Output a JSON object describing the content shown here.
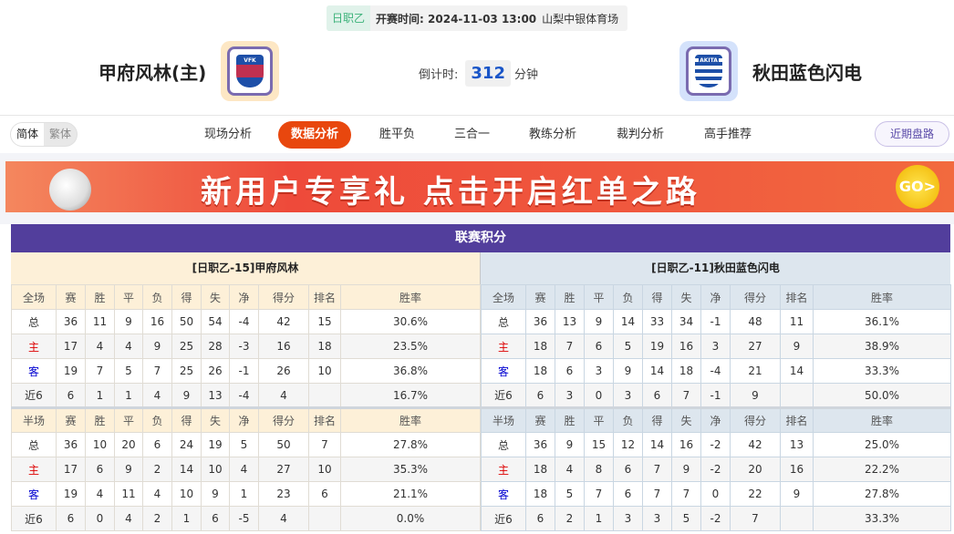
{
  "match": {
    "league": "日职乙",
    "time_label": "开赛时间:",
    "time": "2024-11-03 13:00",
    "venue": "山梨中银体育场",
    "home": "甲府风林(主)",
    "away": "秋田蓝色闪电",
    "countdown_label": "倒计时:",
    "countdown": "312",
    "countdown_unit": "分钟",
    "home_logo_text": "VFK",
    "away_logo_text": "AKITA"
  },
  "lang": {
    "simplified": "简体",
    "traditional": "繁体"
  },
  "nav": [
    {
      "label": "现场分析"
    },
    {
      "label": "数据分析",
      "active": true
    },
    {
      "label": "胜平负"
    },
    {
      "label": "三合一"
    },
    {
      "label": "教练分析"
    },
    {
      "label": "裁判分析"
    },
    {
      "label": "高手推荐"
    }
  ],
  "recent_button": "近期盘路",
  "banner": {
    "text": "新用户专享礼  点击开启红单之路",
    "go": "GO>"
  },
  "standings": {
    "title": "联赛积分",
    "full_header": [
      "全场",
      "赛",
      "胜",
      "平",
      "负",
      "得",
      "失",
      "净",
      "得分",
      "排名",
      "胜率"
    ],
    "half_header": [
      "半场",
      "赛",
      "胜",
      "平",
      "负",
      "得",
      "失",
      "净",
      "得分",
      "排名",
      "胜率"
    ],
    "teams": [
      {
        "name": "[日职乙-15]甲府风林",
        "full": [
          [
            "总",
            "36",
            "11",
            "9",
            "16",
            "50",
            "54",
            "-4",
            "42",
            "15",
            "30.6%"
          ],
          [
            "主",
            "17",
            "4",
            "4",
            "9",
            "25",
            "28",
            "-3",
            "16",
            "18",
            "23.5%"
          ],
          [
            "客",
            "19",
            "7",
            "5",
            "7",
            "25",
            "26",
            "-1",
            "26",
            "10",
            "36.8%"
          ],
          [
            "近6",
            "6",
            "1",
            "1",
            "4",
            "9",
            "13",
            "-4",
            "4",
            "",
            "16.7%"
          ]
        ],
        "half": [
          [
            "总",
            "36",
            "10",
            "20",
            "6",
            "24",
            "19",
            "5",
            "50",
            "7",
            "27.8%"
          ],
          [
            "主",
            "17",
            "6",
            "9",
            "2",
            "14",
            "10",
            "4",
            "27",
            "10",
            "35.3%"
          ],
          [
            "客",
            "19",
            "4",
            "11",
            "4",
            "10",
            "9",
            "1",
            "23",
            "6",
            "21.1%"
          ],
          [
            "近6",
            "6",
            "0",
            "4",
            "2",
            "1",
            "6",
            "-5",
            "4",
            "",
            "0.0%"
          ]
        ]
      },
      {
        "name": "[日职乙-11]秋田蓝色闪电",
        "full": [
          [
            "总",
            "36",
            "13",
            "9",
            "14",
            "33",
            "34",
            "-1",
            "48",
            "11",
            "36.1%"
          ],
          [
            "主",
            "18",
            "7",
            "6",
            "5",
            "19",
            "16",
            "3",
            "27",
            "9",
            "38.9%"
          ],
          [
            "客",
            "18",
            "6",
            "3",
            "9",
            "14",
            "18",
            "-4",
            "21",
            "14",
            "33.3%"
          ],
          [
            "近6",
            "6",
            "3",
            "0",
            "3",
            "6",
            "7",
            "-1",
            "9",
            "",
            "50.0%"
          ]
        ],
        "half": [
          [
            "总",
            "36",
            "9",
            "15",
            "12",
            "14",
            "16",
            "-2",
            "42",
            "13",
            "25.0%"
          ],
          [
            "主",
            "18",
            "4",
            "8",
            "6",
            "7",
            "9",
            "-2",
            "20",
            "16",
            "22.2%"
          ],
          [
            "客",
            "18",
            "5",
            "7",
            "6",
            "7",
            "7",
            "0",
            "22",
            "9",
            "27.8%"
          ],
          [
            "近6",
            "6",
            "2",
            "1",
            "3",
            "3",
            "5",
            "-2",
            "7",
            "",
            "33.3%"
          ]
        ]
      }
    ]
  },
  "colors": {
    "accent": "#e8470e",
    "header": "#523e9c",
    "home_label": "#dd0000",
    "away_label": "#0000d0"
  }
}
